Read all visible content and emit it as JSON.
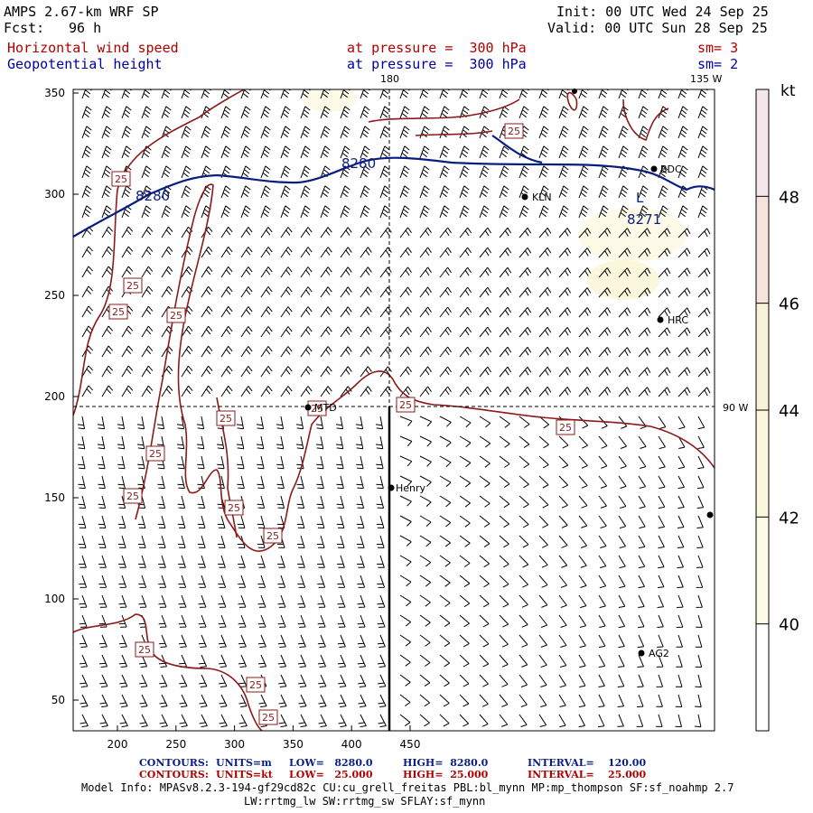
{
  "header": {
    "model": "AMPS 2.67-km WRF SP",
    "fcst_label": "Fcst:",
    "fcst_value": "96 h",
    "init": "Init: 00 UTC Wed 24 Sep 25",
    "valid": "Valid: 00 UTC Sun 28 Sep 25",
    "field1": "Horizontal wind speed",
    "field1_level": "at pressure =  300 hPa",
    "field1_sm": "sm= 3",
    "field2": "Geopotential height",
    "field2_level": "at pressure =  300 hPa",
    "field2_sm": "sm= 2"
  },
  "map": {
    "meridian_180": "180",
    "meridian_135w": "135 W",
    "meridian_90w": "90 W",
    "x_ticks": [
      200,
      250,
      300,
      350,
      400,
      450
    ],
    "y_ticks": [
      50,
      100,
      150,
      200,
      250,
      300,
      350
    ],
    "height_labels": [
      {
        "text": "8280"
      },
      {
        "text": "8280"
      },
      {
        "text": "8271"
      }
    ],
    "low_marker": "L",
    "speed_label": "25",
    "stations": [
      {
        "name": "BDC"
      },
      {
        "name": "KLN"
      },
      {
        "name": "HRC"
      },
      {
        "name": "MTD"
      },
      {
        "name": "Henry"
      },
      {
        "name": "AG2"
      }
    ],
    "station_colors": {
      "dot": "#000000"
    },
    "contour_colors": {
      "height": "#0a1e80",
      "speed": "#8b1a1a"
    }
  },
  "colorbar": {
    "unit": "kt",
    "ticks": [
      "48",
      "46",
      "44",
      "42",
      "40"
    ],
    "colors": [
      "#f4e6ea",
      "#f6e3dc",
      "#f7f2d8",
      "#fbf7dc",
      "#fdfbe8",
      "#ffffff"
    ]
  },
  "footer": {
    "row1_label": "CONTOURS:",
    "row1_units": "UNITS=m",
    "row1_low": "LOW=   8280.0",
    "row1_high": "HIGH=  8280.0",
    "row1_interval": "INTERVAL=    120.00",
    "row2_label": "CONTOURS:",
    "row2_units": "UNITS=kt",
    "row2_low": "LOW=   25.000",
    "row2_high": "HIGH=  25.000",
    "row2_interval": "INTERVAL=    25.000",
    "info1": "Model Info: MPASv8.2.3-194-gf29cd82c CU:cu_grell_freitas PBL:bl_mynn MP:mp_thompson SF:sf_noahmp 2.7",
    "info2": "LW:rrtmg_lw SW:rrtmg_sw SFLAY:sf_mynn"
  }
}
